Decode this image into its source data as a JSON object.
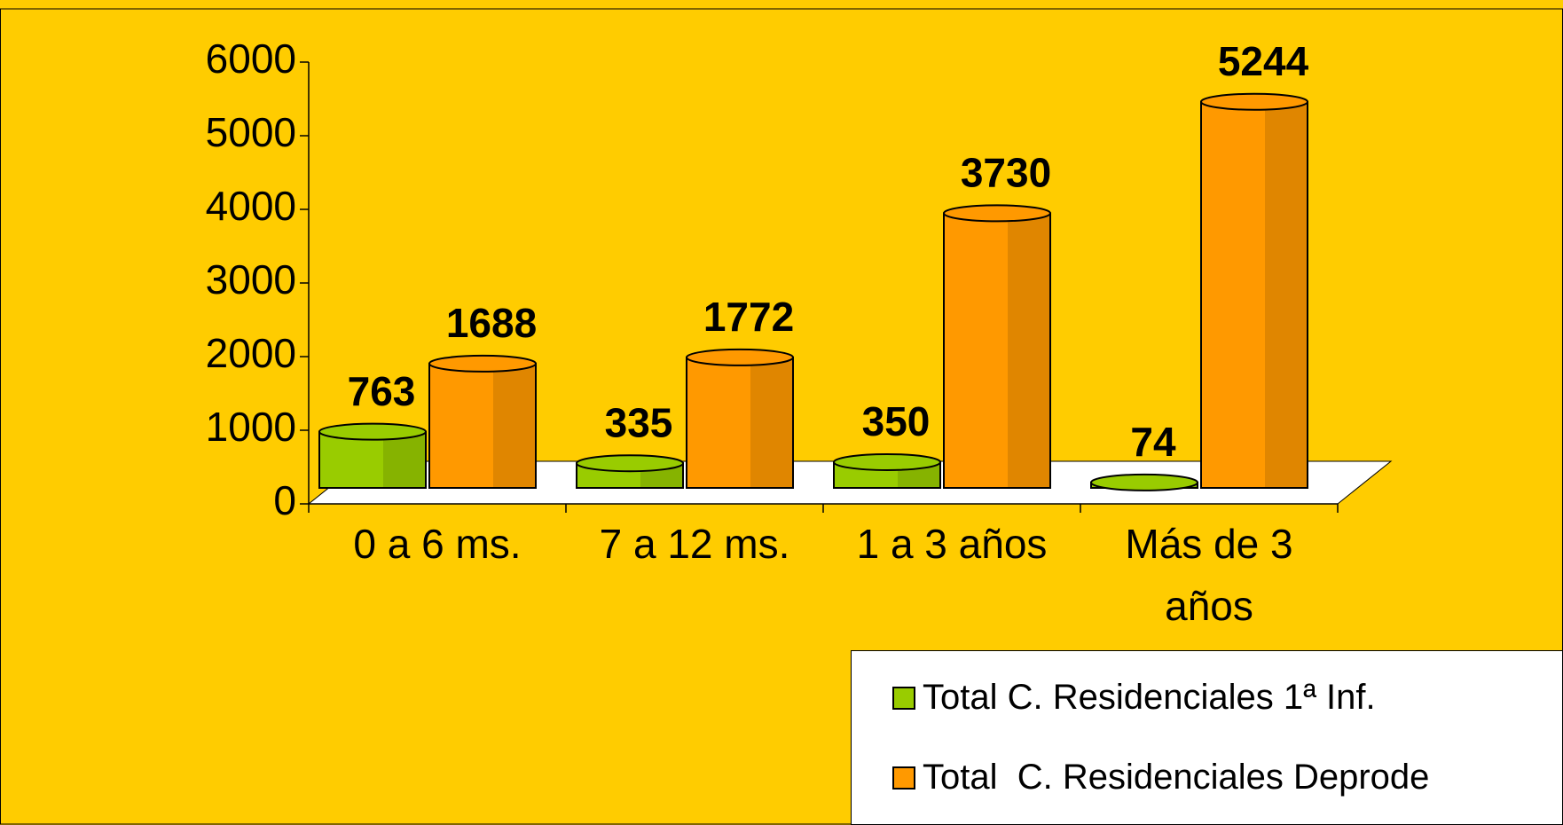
{
  "chart_data": {
    "type": "bar",
    "categories": [
      "0 a 6 ms.",
      "7 a 12 ms.",
      "1 a 3 años",
      "Más de 3 años"
    ],
    "series": [
      {
        "name": "Total C. Residenciales 1ª Inf.",
        "color": "#99cc00",
        "values": [
          763,
          335,
          350,
          74
        ]
      },
      {
        "name": "Total  C. Residenciales Deprode",
        "color": "#ff9900",
        "values": [
          1688,
          1772,
          3730,
          5244
        ]
      }
    ],
    "ylim": [
      0,
      6000
    ],
    "yticks": [
      0,
      1000,
      2000,
      3000,
      4000,
      5000,
      6000
    ],
    "background": "#ffcc00"
  }
}
